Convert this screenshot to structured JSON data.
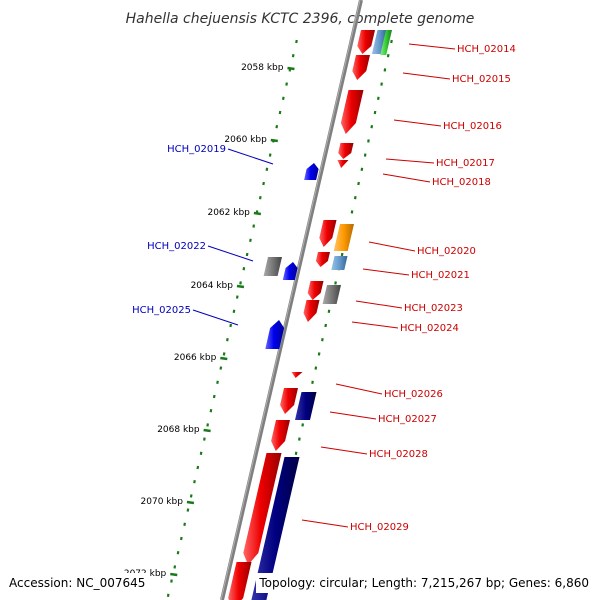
{
  "title": "Hahella chejuensis KCTC 2396, complete genome",
  "footer": {
    "accession": "Accession: NC_007645",
    "topology": "Topology: circular; Length: 7,215,267 bp; Genes: 6,860"
  },
  "colors": {
    "forward_label": "#cc0000",
    "reverse_label": "#0000bb",
    "backbone": "#7f7f7f",
    "tick": "#1a7a1a"
  },
  "scale_marks": [
    {
      "label": "2058 kbp"
    },
    {
      "label": "2060 kbp"
    },
    {
      "label": "2062 kbp"
    },
    {
      "label": "2064 kbp"
    },
    {
      "label": "2066 kbp"
    },
    {
      "label": "2068 kbp"
    },
    {
      "label": "2070 kbp"
    },
    {
      "label": "2072 kbp"
    }
  ],
  "genes": [
    {
      "id": "HCH_02014",
      "strand": "forward",
      "color": "#ee0000"
    },
    {
      "id": "HCH_02015",
      "strand": "forward",
      "color": "#ee0000"
    },
    {
      "id": "HCH_02016",
      "strand": "forward",
      "color": "#ee0000"
    },
    {
      "id": "HCH_02017",
      "strand": "forward",
      "color": "#ee0000"
    },
    {
      "id": "HCH_02018",
      "strand": "forward",
      "color": "#ee0000"
    },
    {
      "id": "HCH_02019",
      "strand": "reverse",
      "color": "#0000ee"
    },
    {
      "id": "HCH_02020",
      "strand": "forward",
      "color": "#ee0000"
    },
    {
      "id": "HCH_02021",
      "strand": "forward",
      "color": "#ee0000"
    },
    {
      "id": "HCH_02022",
      "strand": "reverse",
      "color": "#0000ee"
    },
    {
      "id": "HCH_02023",
      "strand": "forward",
      "color": "#ee0000"
    },
    {
      "id": "HCH_02024",
      "strand": "forward",
      "color": "#ee0000"
    },
    {
      "id": "HCH_02025",
      "strand": "reverse",
      "color": "#0000ee"
    },
    {
      "id": "HCH_02026",
      "strand": "forward",
      "color": "#ee0000"
    },
    {
      "id": "HCH_02027",
      "strand": "forward",
      "color": "#ee0000"
    },
    {
      "id": "HCH_02028",
      "strand": "forward",
      "color": "#ee0000"
    },
    {
      "id": "HCH_02029",
      "strand": "forward",
      "color": "#ee0000"
    }
  ],
  "features": [
    {
      "type": "CDS",
      "color": "#6699cc"
    },
    {
      "type": "CDS",
      "color": "#33cc33"
    },
    {
      "type": "CDS",
      "color": "#ff9900"
    },
    {
      "type": "CDS",
      "color": "#6699cc"
    },
    {
      "type": "CDS",
      "color": "#777777"
    },
    {
      "type": "CDS",
      "color": "#777777"
    },
    {
      "type": "CDS",
      "color": "#000080"
    },
    {
      "type": "CDS",
      "color": "#000080"
    }
  ]
}
